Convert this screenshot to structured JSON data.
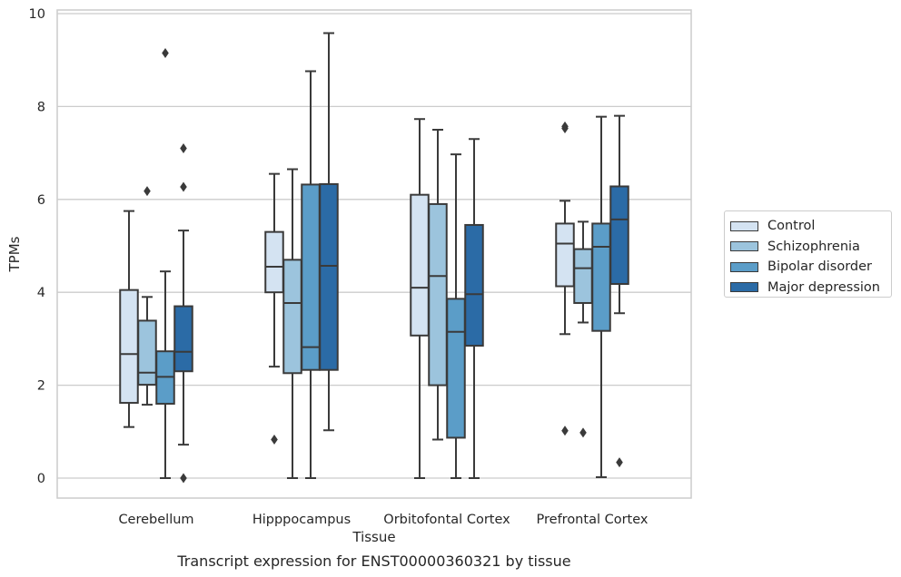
{
  "chart_data": {
    "type": "box",
    "title": "",
    "caption": "Transcript expression for ENST00000360321 by tissue",
    "xlabel": "Tissue",
    "ylabel": "TPMs",
    "ylim": [
      -0.45,
      10.1
    ],
    "yticks": [
      0,
      2,
      4,
      6,
      8,
      10
    ],
    "grid": true,
    "legend_position": "right",
    "categories": [
      "Cerebellum",
      "Hipppocampus",
      "Orbitofontal Cortex",
      "Prefrontal Cortex"
    ],
    "series": [
      {
        "name": "Control",
        "color": "#d4e3f2",
        "boxes": [
          {
            "whislo": 1.1,
            "q1": 1.62,
            "med": 2.67,
            "q3": 4.05,
            "whishi": 5.75,
            "fliers": []
          },
          {
            "whislo": 2.4,
            "q1": 4.0,
            "med": 4.55,
            "q3": 5.3,
            "whishi": 6.55,
            "fliers": [
              0.83
            ]
          },
          {
            "whislo": 0.0,
            "q1": 3.07,
            "med": 4.1,
            "q3": 6.1,
            "whishi": 7.73,
            "fliers": []
          },
          {
            "whislo": 3.1,
            "q1": 4.13,
            "med": 5.05,
            "q3": 5.48,
            "whishi": 5.97,
            "fliers": [
              7.53,
              7.57,
              1.02
            ]
          }
        ]
      },
      {
        "name": "Schizophrenia",
        "color": "#9cc4dd",
        "boxes": [
          {
            "whislo": 1.58,
            "q1": 2.01,
            "med": 2.27,
            "q3": 3.39,
            "whishi": 3.9,
            "fliers": [
              6.18
            ]
          },
          {
            "whislo": 0.0,
            "q1": 2.26,
            "med": 3.77,
            "q3": 4.7,
            "whishi": 6.65,
            "fliers": []
          },
          {
            "whislo": 0.83,
            "q1": 2.0,
            "med": 4.35,
            "q3": 5.9,
            "whishi": 7.5,
            "fliers": []
          },
          {
            "whislo": 3.35,
            "q1": 3.77,
            "med": 4.52,
            "q3": 4.93,
            "whishi": 5.52,
            "fliers": [
              0.98
            ]
          }
        ]
      },
      {
        "name": "Bipolar disorder",
        "color": "#5b9dc8",
        "boxes": [
          {
            "whislo": 0.0,
            "q1": 1.6,
            "med": 2.18,
            "q3": 2.73,
            "whishi": 4.45,
            "fliers": [
              9.15
            ]
          },
          {
            "whislo": 0.0,
            "q1": 2.33,
            "med": 2.82,
            "q3": 6.32,
            "whishi": 8.76,
            "fliers": []
          },
          {
            "whislo": 0.0,
            "q1": 0.87,
            "med": 3.15,
            "q3": 3.86,
            "whishi": 6.97,
            "fliers": []
          },
          {
            "whislo": 0.02,
            "q1": 3.17,
            "med": 4.98,
            "q3": 5.48,
            "whishi": 7.78,
            "fliers": []
          }
        ]
      },
      {
        "name": "Major depression",
        "color": "#2b6ba6",
        "boxes": [
          {
            "whislo": 0.72,
            "q1": 2.3,
            "med": 2.72,
            "q3": 3.7,
            "whishi": 5.33,
            "fliers": [
              7.1,
              6.27,
              0.0
            ]
          },
          {
            "whislo": 1.03,
            "q1": 2.33,
            "med": 4.57,
            "q3": 6.33,
            "whishi": 9.58,
            "fliers": []
          },
          {
            "whislo": 0.0,
            "q1": 2.85,
            "med": 3.96,
            "q3": 5.45,
            "whishi": 7.3,
            "fliers": []
          },
          {
            "whislo": 3.55,
            "q1": 4.18,
            "med": 5.57,
            "q3": 6.28,
            "whishi": 7.8,
            "fliers": [
              0.34
            ]
          }
        ]
      }
    ]
  }
}
